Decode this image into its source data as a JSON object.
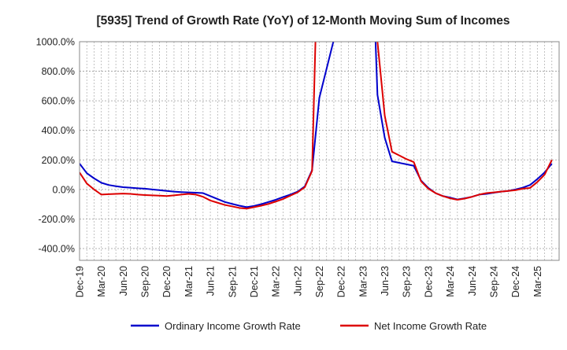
{
  "chart_data": {
    "type": "line",
    "title": "[5935]  Trend of Growth Rate (YoY) of 12-Month Moving Sum of Incomes",
    "xlabel": "",
    "ylabel": "",
    "ylim": [
      -480,
      1000
    ],
    "y_ticks": [
      1000,
      800,
      600,
      400,
      200,
      0,
      -200,
      -400
    ],
    "y_tick_labels": [
      "1000.0%",
      "800.0%",
      "600.0%",
      "400.0%",
      "200.0%",
      "0.0%",
      "-200.0%",
      "-400.0%"
    ],
    "x_tick_labels": [
      "Dec-19",
      "Mar-20",
      "Jun-20",
      "Sep-20",
      "Dec-20",
      "Mar-21",
      "Jun-21",
      "Sep-21",
      "Dec-21",
      "Mar-22",
      "Jun-22",
      "Sep-22",
      "Dec-22",
      "Mar-23",
      "Jun-23",
      "Sep-23",
      "Dec-23",
      "Mar-24",
      "Jun-24",
      "Sep-24",
      "Dec-24",
      "Mar-25"
    ],
    "grid": true,
    "legend_position": "bottom",
    "series": [
      {
        "name": "Ordinary Income Growth Rate",
        "color": "#0000cc",
        "points": [
          [
            0,
            175
          ],
          [
            1,
            110
          ],
          [
            2,
            75
          ],
          [
            3,
            45
          ],
          [
            4,
            30
          ],
          [
            5,
            22
          ],
          [
            6,
            15
          ],
          [
            7,
            12
          ],
          [
            8,
            8
          ],
          [
            9,
            5
          ],
          [
            10,
            0
          ],
          [
            11,
            -5
          ],
          [
            12,
            -10
          ],
          [
            13,
            -15
          ],
          [
            14,
            -18
          ],
          [
            15,
            -20
          ],
          [
            16,
            -22
          ],
          [
            17,
            -25
          ],
          [
            18,
            -45
          ],
          [
            19,
            -65
          ],
          [
            20,
            -85
          ],
          [
            21,
            -98
          ],
          [
            22,
            -110
          ],
          [
            23,
            -120
          ],
          [
            24,
            -112
          ],
          [
            25,
            -100
          ],
          [
            26,
            -85
          ],
          [
            27,
            -70
          ],
          [
            28,
            -52
          ],
          [
            29,
            -35
          ],
          [
            30,
            -15
          ],
          [
            31,
            20
          ],
          [
            32,
            130
          ],
          [
            33,
            620
          ],
          [
            40,
            2000
          ],
          [
            41,
            640
          ],
          [
            42,
            350
          ],
          [
            43,
            190
          ],
          [
            44,
            180
          ],
          [
            45,
            170
          ],
          [
            46,
            160
          ],
          [
            47,
            60
          ],
          [
            48,
            10
          ],
          [
            49,
            -25
          ],
          [
            50,
            -45
          ],
          [
            51,
            -55
          ],
          [
            52,
            -68
          ],
          [
            53,
            -60
          ],
          [
            54,
            -50
          ],
          [
            55,
            -35
          ],
          [
            56,
            -30
          ],
          [
            57,
            -22
          ],
          [
            58,
            -15
          ],
          [
            59,
            -10
          ],
          [
            60,
            0
          ],
          [
            61,
            12
          ],
          [
            62,
            30
          ],
          [
            63,
            70
          ],
          [
            64,
            115
          ],
          [
            65,
            175
          ]
        ]
      },
      {
        "name": "Net Income Growth Rate",
        "color": "#dd0000",
        "points": [
          [
            0,
            115
          ],
          [
            1,
            40
          ],
          [
            2,
            0
          ],
          [
            3,
            -35
          ],
          [
            4,
            -32
          ],
          [
            5,
            -30
          ],
          [
            6,
            -28
          ],
          [
            7,
            -30
          ],
          [
            8,
            -35
          ],
          [
            9,
            -38
          ],
          [
            10,
            -40
          ],
          [
            11,
            -42
          ],
          [
            12,
            -45
          ],
          [
            13,
            -40
          ],
          [
            14,
            -35
          ],
          [
            15,
            -30
          ],
          [
            16,
            -35
          ],
          [
            17,
            -50
          ],
          [
            18,
            -75
          ],
          [
            19,
            -90
          ],
          [
            20,
            -105
          ],
          [
            21,
            -115
          ],
          [
            22,
            -125
          ],
          [
            23,
            -130
          ],
          [
            24,
            -120
          ],
          [
            25,
            -110
          ],
          [
            26,
            -98
          ],
          [
            27,
            -82
          ],
          [
            28,
            -65
          ],
          [
            29,
            -42
          ],
          [
            30,
            -20
          ],
          [
            31,
            15
          ],
          [
            32,
            125
          ],
          [
            33,
            2000
          ],
          [
            40,
            2000
          ],
          [
            41,
            1000
          ],
          [
            42,
            500
          ],
          [
            43,
            255
          ],
          [
            44,
            230
          ],
          [
            45,
            205
          ],
          [
            46,
            185
          ],
          [
            47,
            55
          ],
          [
            48,
            5
          ],
          [
            49,
            -25
          ],
          [
            50,
            -45
          ],
          [
            51,
            -60
          ],
          [
            52,
            -70
          ],
          [
            53,
            -62
          ],
          [
            54,
            -50
          ],
          [
            55,
            -35
          ],
          [
            56,
            -25
          ],
          [
            57,
            -20
          ],
          [
            58,
            -15
          ],
          [
            59,
            -10
          ],
          [
            60,
            -5
          ],
          [
            61,
            5
          ],
          [
            62,
            10
          ],
          [
            63,
            50
          ],
          [
            64,
            100
          ],
          [
            65,
            200
          ]
        ]
      }
    ]
  }
}
